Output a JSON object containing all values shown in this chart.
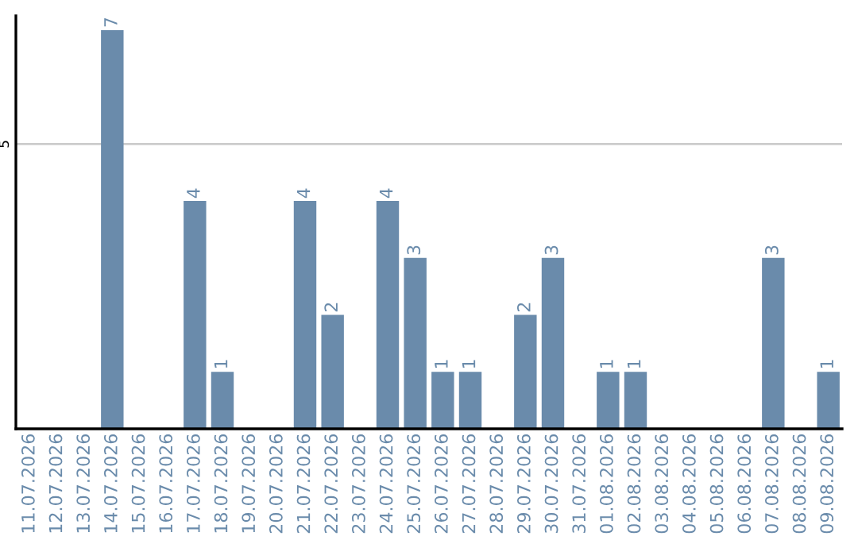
{
  "chart_data": {
    "type": "bar",
    "categories": [
      "11.07.2026",
      "12.07.2026",
      "13.07.2026",
      "14.07.2026",
      "15.07.2026",
      "16.07.2026",
      "17.07.2026",
      "18.07.2026",
      "19.07.2026",
      "20.07.2026",
      "21.07.2026",
      "22.07.2026",
      "23.07.2026",
      "24.07.2026",
      "25.07.2026",
      "26.07.2026",
      "27.07.2026",
      "28.07.2026",
      "29.07.2026",
      "30.07.2026",
      "31.07.2026",
      "01.08.2026",
      "02.08.2026",
      "03.08.2026",
      "04.08.2026",
      "05.08.2026",
      "06.08.2026",
      "07.08.2026",
      "08.08.2026",
      "09.08.2026"
    ],
    "values": [
      0,
      0,
      0,
      7,
      0,
      0,
      4,
      1,
      0,
      0,
      4,
      2,
      0,
      4,
      3,
      1,
      1,
      0,
      2,
      3,
      0,
      1,
      1,
      0,
      0,
      0,
      0,
      3,
      0,
      1
    ],
    "value_labels": [
      null,
      null,
      null,
      "7",
      null,
      null,
      "4",
      "1",
      null,
      null,
      "4",
      "2",
      null,
      "4",
      "3",
      "1",
      "1",
      null,
      "2",
      "3",
      null,
      "1",
      "1",
      null,
      null,
      null,
      null,
      "3",
      null,
      "1"
    ],
    "color": "#6a8bab",
    "ylim": [
      0,
      7.25
    ],
    "yticks": [
      5
    ],
    "grid": "y",
    "legend": false
  }
}
